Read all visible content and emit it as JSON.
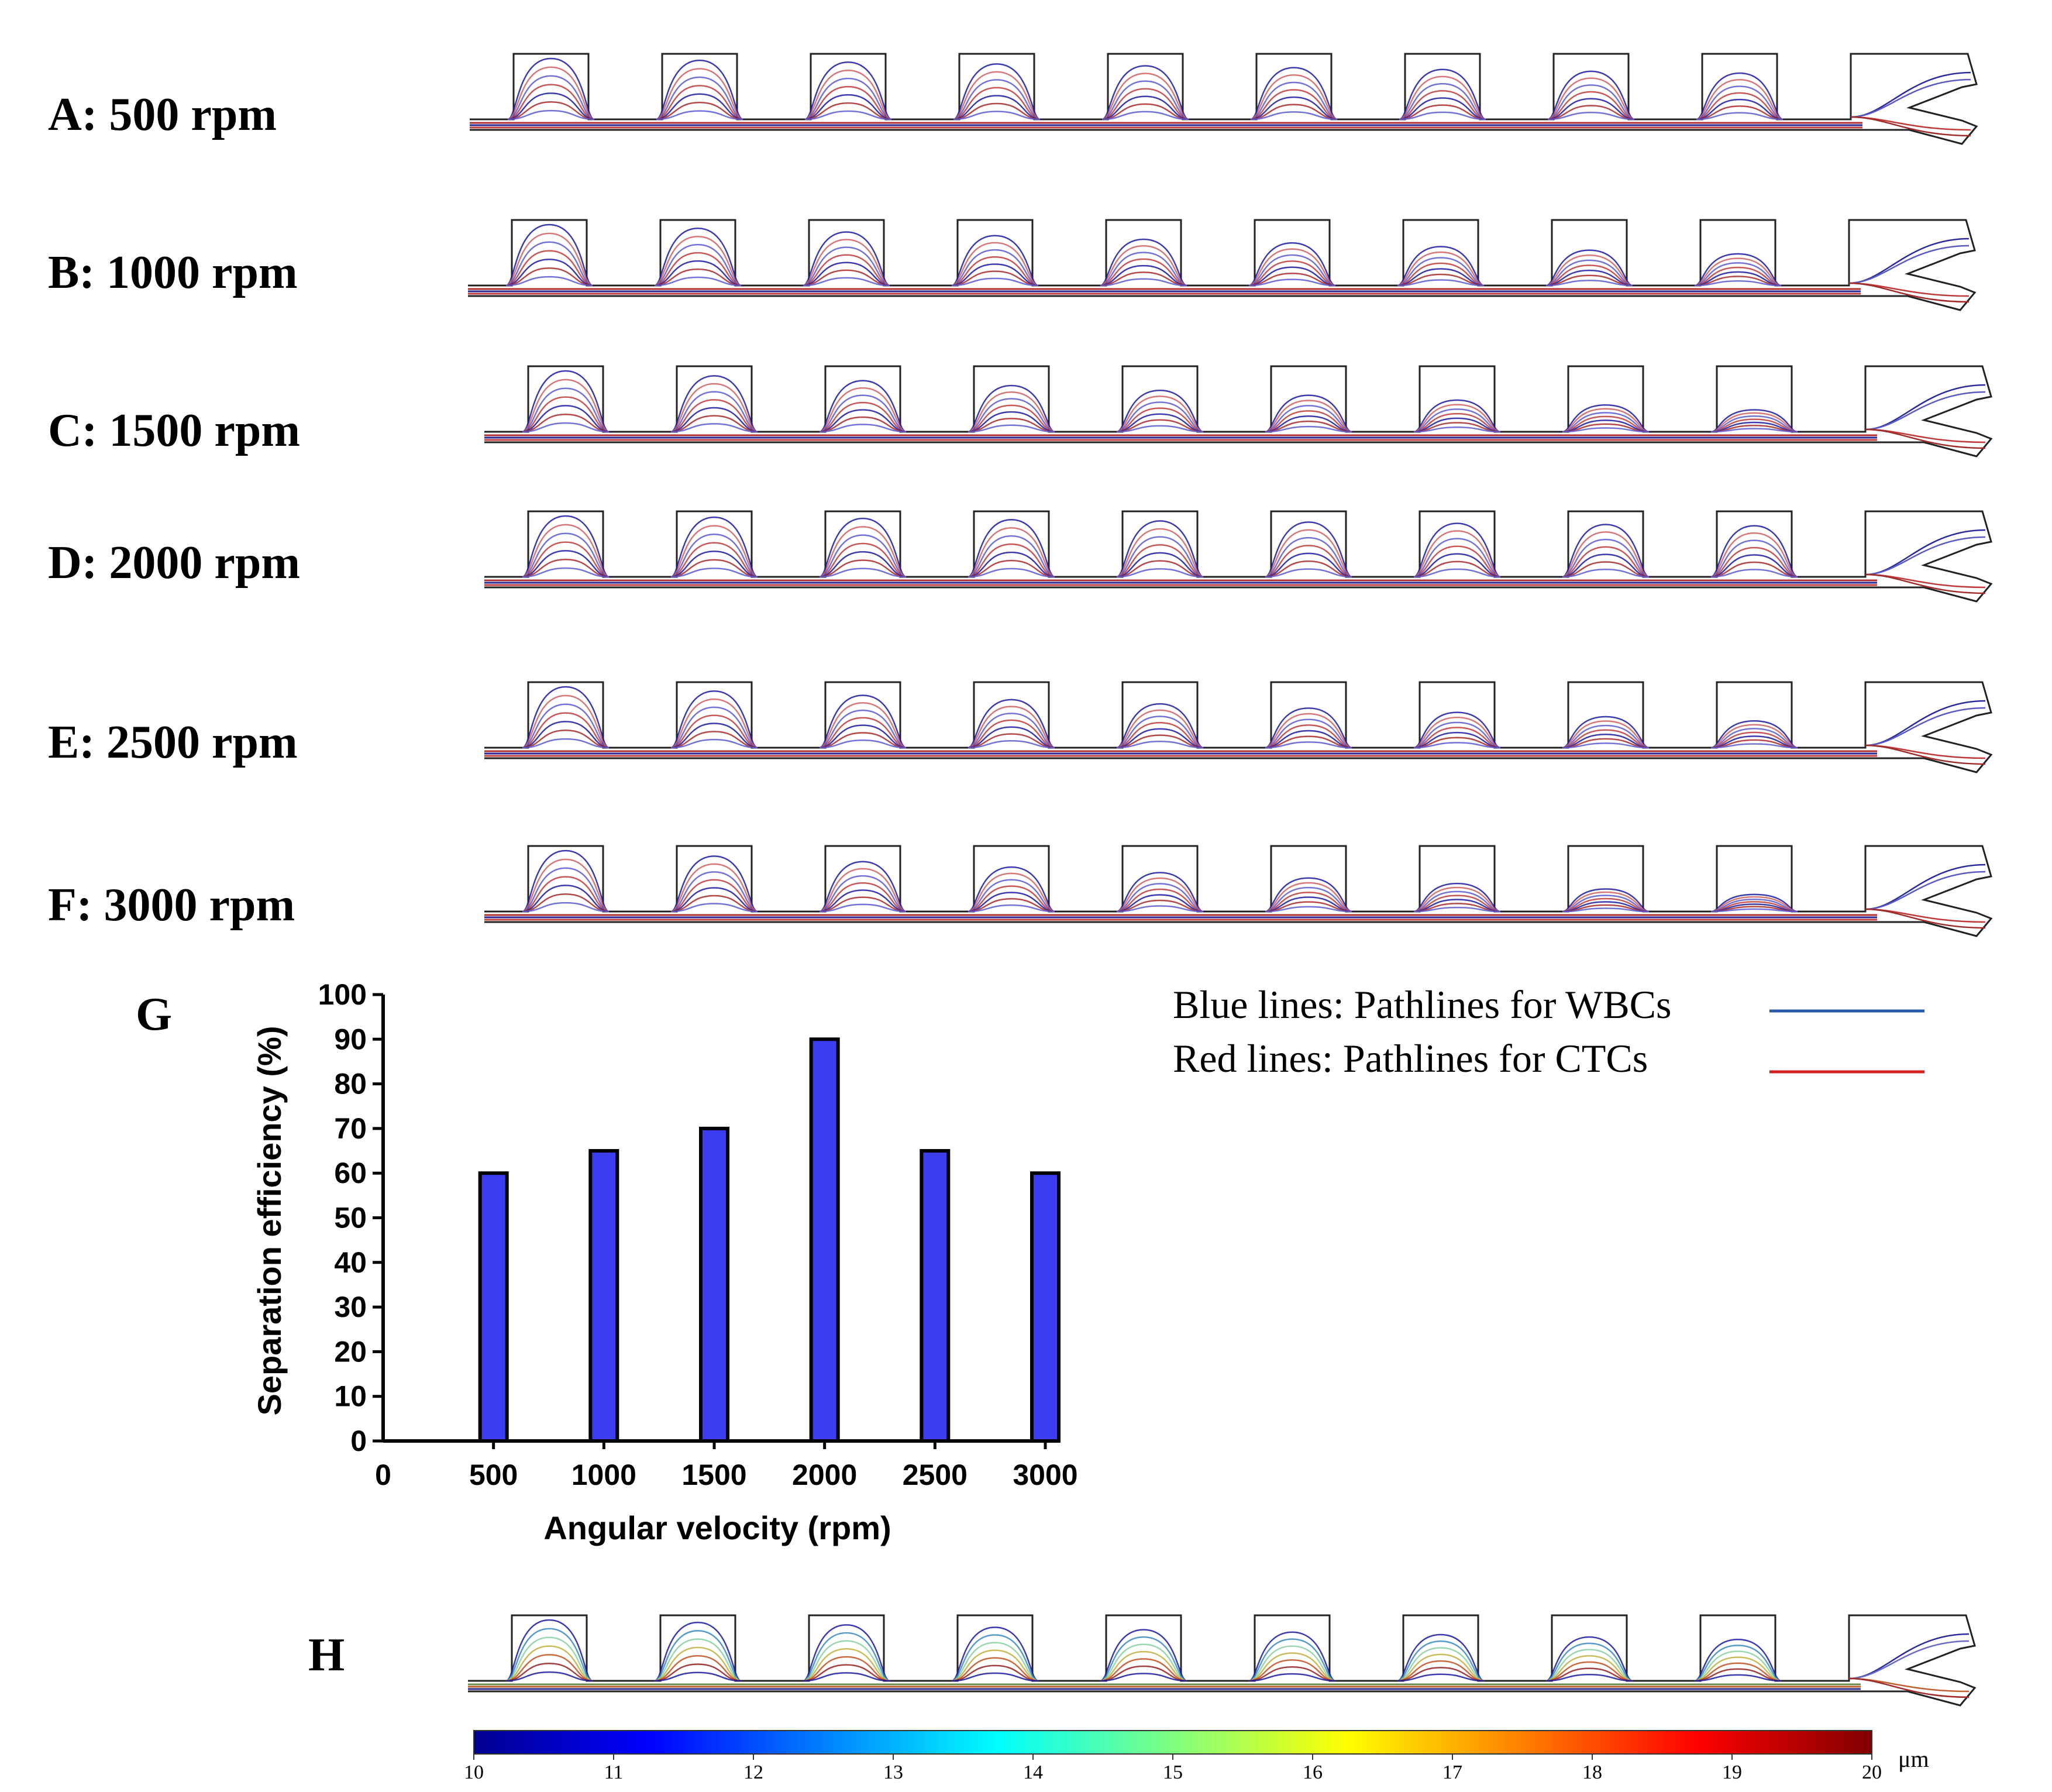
{
  "rows": [
    {
      "id": "A",
      "label": "A: 500 rpm"
    },
    {
      "id": "B",
      "label": "B: 1000 rpm"
    },
    {
      "id": "C",
      "label": "C: 1500 rpm"
    },
    {
      "id": "D",
      "label": "D: 2000 rpm"
    },
    {
      "id": "E",
      "label": "E: 2500 rpm"
    },
    {
      "id": "F",
      "label": "F: 3000 rpm"
    }
  ],
  "panel_g_letter": "G",
  "panel_h_letter": "H",
  "legend": {
    "blue_label": "Blue lines: Pathlines for WBCs",
    "red_label": "Red lines: Pathlines for CTCs",
    "blue_color": "#2b5aa8",
    "red_color": "#d42020"
  },
  "colorbar": {
    "ticks": [
      "10",
      "11",
      "12",
      "13",
      "14",
      "15",
      "16",
      "17",
      "18",
      "19",
      "20"
    ],
    "unit": "μm"
  },
  "chart_data": {
    "type": "bar",
    "categories": [
      "500",
      "1000",
      "1500",
      "2000",
      "2500",
      "3000"
    ],
    "values": [
      60,
      65,
      70,
      90,
      65,
      60
    ],
    "xlabel": "Angular velocity (rpm)",
    "ylabel": "Separation efficiency (%)",
    "ylim": [
      0,
      100
    ],
    "yticks": [
      "0",
      "10",
      "20",
      "30",
      "40",
      "50",
      "60",
      "70",
      "80",
      "90",
      "100"
    ],
    "x_zero_label": "0",
    "bar_color": "#3c3cf0",
    "grid": false
  }
}
